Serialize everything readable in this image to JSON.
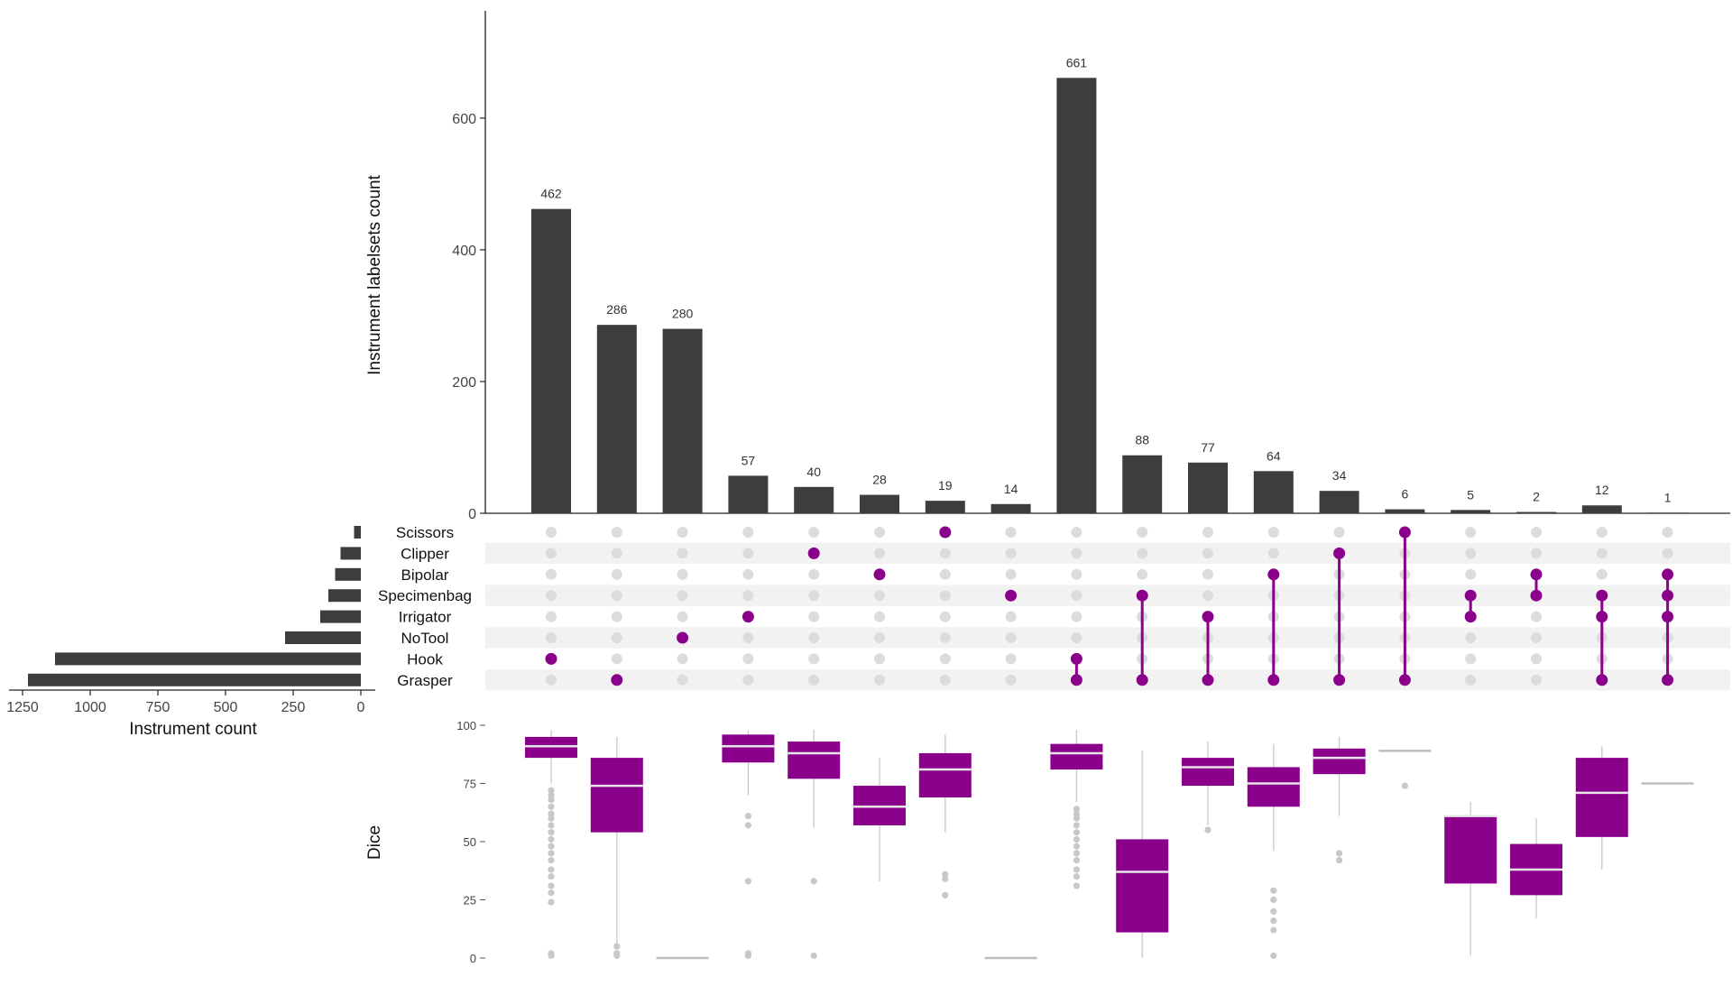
{
  "chart_data": {
    "type": "bar",
    "title": "",
    "ylabel": "Instrument labelsets count",
    "ylim": [
      0,
      760
    ],
    "yticks": [
      0,
      200,
      400,
      600
    ],
    "sets": [
      "Scissors",
      "Clipper",
      "Bipolar",
      "Specimenbag",
      "Irrigator",
      "NoTool",
      "Hook",
      "Grasper"
    ],
    "set_sizes": {
      "xlabel": "Instrument count",
      "xticks": [
        1250,
        1000,
        750,
        500,
        250,
        0
      ],
      "xlim": [
        0,
        1300
      ],
      "values": [
        25,
        75,
        95,
        120,
        150,
        280,
        1130,
        1230
      ]
    },
    "intersections": {
      "values": [
        462,
        286,
        280,
        57,
        40,
        28,
        19,
        14,
        661,
        88,
        77,
        64,
        34,
        6,
        5,
        2,
        12,
        1
      ],
      "labels": [
        "462",
        "286",
        "280",
        "57",
        "40",
        "28",
        "19",
        "14",
        "661",
        "88",
        "77",
        "64",
        "34",
        "6",
        "5",
        "2",
        "12",
        "1"
      ],
      "members": [
        [
          "Hook"
        ],
        [
          "Grasper"
        ],
        [
          "NoTool"
        ],
        [
          "Irrigator"
        ],
        [
          "Clipper"
        ],
        [
          "Bipolar"
        ],
        [
          "Scissors"
        ],
        [
          "Specimenbag"
        ],
        [
          "Hook",
          "Grasper"
        ],
        [
          "Specimenbag",
          "Grasper"
        ],
        [
          "Irrigator",
          "Grasper"
        ],
        [
          "Bipolar",
          "Grasper"
        ],
        [
          "Clipper",
          "Grasper"
        ],
        [
          "Scissors",
          "Grasper"
        ],
        [
          "Specimenbag",
          "Irrigator"
        ],
        [
          "Bipolar",
          "Specimenbag"
        ],
        [
          "Specimenbag",
          "Irrigator",
          "Grasper"
        ],
        [
          "Bipolar",
          "Specimenbag",
          "Irrigator",
          "Grasper"
        ]
      ]
    },
    "dice": {
      "ylabel": "Dice",
      "ylim": [
        0,
        100
      ],
      "yticks": [
        0,
        25,
        50,
        75,
        100
      ],
      "boxes": [
        {
          "q1": 86,
          "median": 91,
          "q3": 95,
          "whisker_low": 75,
          "whisker_high": 98,
          "outliers": [
            72,
            70,
            68,
            65,
            62,
            60,
            57,
            54,
            51,
            48,
            45,
            42,
            38,
            35,
            31,
            28,
            24,
            2,
            1
          ]
        },
        {
          "q1": 54,
          "median": 74,
          "q3": 86,
          "whisker_low": 5,
          "whisker_high": 95,
          "outliers": [
            5,
            2,
            1
          ]
        },
        {
          "q1": 0,
          "median": 0,
          "q3": 0,
          "whisker_low": 0,
          "whisker_high": 0,
          "outliers": []
        },
        {
          "q1": 84,
          "median": 91,
          "q3": 96,
          "whisker_low": 70,
          "whisker_high": 98,
          "outliers": [
            61,
            57,
            33,
            2,
            1
          ]
        },
        {
          "q1": 77,
          "median": 88,
          "q3": 93,
          "whisker_low": 56,
          "whisker_high": 98,
          "outliers": [
            33,
            1
          ]
        },
        {
          "q1": 57,
          "median": 65,
          "q3": 74,
          "whisker_low": 33,
          "whisker_high": 86,
          "outliers": []
        },
        {
          "q1": 69,
          "median": 81,
          "q3": 88,
          "whisker_low": 54,
          "whisker_high": 96,
          "outliers": [
            36,
            34,
            27
          ]
        },
        {
          "q1": 0,
          "median": 0,
          "q3": 0,
          "whisker_low": 0,
          "whisker_high": 0,
          "outliers": []
        },
        {
          "q1": 81,
          "median": 88,
          "q3": 92,
          "whisker_low": 67,
          "whisker_high": 98,
          "outliers": [
            64,
            62,
            60,
            57,
            54,
            51,
            48,
            45,
            42,
            38,
            35,
            31
          ]
        },
        {
          "q1": 11,
          "median": 37,
          "q3": 51,
          "whisker_low": 0,
          "whisker_high": 89,
          "outliers": []
        },
        {
          "q1": 74,
          "median": 82,
          "q3": 86,
          "whisker_low": 57,
          "whisker_high": 93,
          "outliers": [
            55
          ]
        },
        {
          "q1": 65,
          "median": 75,
          "q3": 82,
          "whisker_low": 46,
          "whisker_high": 92,
          "outliers": [
            29,
            25,
            20,
            16,
            12,
            1
          ]
        },
        {
          "q1": 79,
          "median": 86,
          "q3": 90,
          "whisker_low": 61,
          "whisker_high": 95,
          "outliers": [
            45,
            42
          ]
        },
        {
          "q1": 88,
          "median": 89,
          "q3": 90,
          "whisker_low": 88,
          "whisker_high": 90,
          "outliers": [
            74
          ]
        },
        {
          "q1": 32,
          "median": 61,
          "q3": 61,
          "whisker_low": 1,
          "whisker_high": 67,
          "outliers": []
        },
        {
          "q1": 27,
          "median": 38,
          "q3": 49,
          "whisker_low": 17,
          "whisker_high": 60,
          "outliers": []
        },
        {
          "q1": 52,
          "median": 71,
          "q3": 86,
          "whisker_low": 38,
          "whisker_high": 91,
          "outliers": []
        },
        {
          "q1": 75,
          "median": 75,
          "q3": 75,
          "whisker_low": 75,
          "whisker_high": 75,
          "outliers": []
        }
      ]
    },
    "colors": {
      "bar": "#3d3d3d",
      "accent": "#8b008b",
      "inactive_dot": "#dcdcdc",
      "stripe": "#f2f2f2",
      "whisker": "#c8c8c8",
      "median": "#e6e6e6",
      "outlier": "#c8c8c8",
      "flat_box": "#bdbdbd"
    }
  }
}
